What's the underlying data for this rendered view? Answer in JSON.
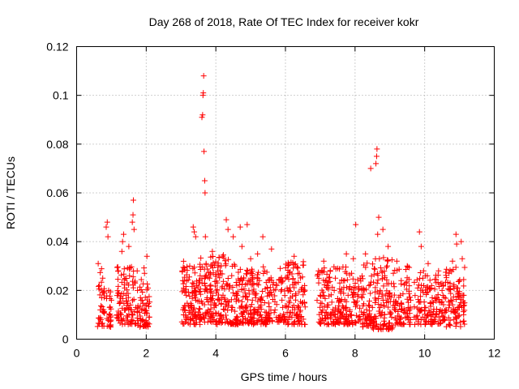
{
  "chart_data": {
    "type": "scatter",
    "title": "Day 268 of 2018, Rate Of TEC Index for receiver kokr",
    "xlabel": "GPS time / hours",
    "ylabel": "ROTI / TECUs",
    "xlim": [
      0,
      12
    ],
    "ylim": [
      0,
      0.12
    ],
    "x_ticks": [
      0,
      2,
      4,
      6,
      8,
      10,
      12
    ],
    "y_ticks": [
      0,
      0.02,
      0.04,
      0.06,
      0.08,
      0.1,
      0.12
    ],
    "x_tick_labels": [
      "0",
      "2",
      "4",
      "6",
      "8",
      "10",
      "12"
    ],
    "y_tick_labels": [
      "0",
      "0.02",
      "0.04",
      "0.06",
      "0.08",
      "0.1",
      "0.12"
    ],
    "grid": true,
    "marker": "+",
    "color": "#ff0000",
    "series": [
      {
        "name": "ROTI",
        "points": [
          [
            0.62,
            0.031
          ],
          [
            0.65,
            0.022
          ],
          [
            0.68,
            0.012
          ],
          [
            0.7,
            0.008
          ],
          [
            0.72,
            0.017
          ],
          [
            0.75,
            0.025
          ],
          [
            0.78,
            0.011
          ],
          [
            0.8,
            0.019
          ],
          [
            0.85,
            0.046
          ],
          [
            0.88,
            0.048
          ],
          [
            0.9,
            0.042
          ],
          [
            0.92,
            0.02
          ],
          [
            0.95,
            0.013
          ],
          [
            0.97,
            0.009
          ],
          [
            1.0,
            0.016
          ],
          [
            1.2,
            0.028
          ],
          [
            1.25,
            0.015
          ],
          [
            1.28,
            0.01
          ],
          [
            1.3,
            0.036
          ],
          [
            1.32,
            0.04
          ],
          [
            1.35,
            0.043
          ],
          [
            1.38,
            0.021
          ],
          [
            1.4,
            0.012
          ],
          [
            1.42,
            0.018
          ],
          [
            1.5,
            0.038
          ],
          [
            1.52,
            0.026
          ],
          [
            1.55,
            0.014
          ],
          [
            1.58,
            0.01
          ],
          [
            1.6,
            0.048
          ],
          [
            1.62,
            0.051
          ],
          [
            1.63,
            0.057
          ],
          [
            1.65,
            0.045
          ],
          [
            1.68,
            0.023
          ],
          [
            1.7,
            0.013
          ],
          [
            1.75,
            0.02
          ],
          [
            1.8,
            0.011
          ],
          [
            1.85,
            0.016
          ],
          [
            1.9,
            0.008
          ],
          [
            1.95,
            0.027
          ],
          [
            2.0,
            0.014
          ],
          [
            2.02,
            0.034
          ],
          [
            2.05,
            0.021
          ],
          [
            2.08,
            0.009
          ],
          [
            3.05,
            0.024
          ],
          [
            3.1,
            0.012
          ],
          [
            3.15,
            0.018
          ],
          [
            3.2,
            0.009
          ],
          [
            3.25,
            0.03
          ],
          [
            3.3,
            0.014
          ],
          [
            3.35,
            0.046
          ],
          [
            3.38,
            0.044
          ],
          [
            3.42,
            0.042
          ],
          [
            3.45,
            0.022
          ],
          [
            3.5,
            0.011
          ],
          [
            3.55,
            0.026
          ],
          [
            3.6,
            0.091
          ],
          [
            3.62,
            0.092
          ],
          [
            3.63,
            0.1
          ],
          [
            3.64,
            0.101
          ],
          [
            3.65,
            0.108
          ],
          [
            3.66,
            0.077
          ],
          [
            3.68,
            0.065
          ],
          [
            3.69,
            0.06
          ],
          [
            3.7,
            0.042
          ],
          [
            3.72,
            0.031
          ],
          [
            3.75,
            0.017
          ],
          [
            3.78,
            0.012
          ],
          [
            3.82,
            0.025
          ],
          [
            3.85,
            0.019
          ],
          [
            3.9,
            0.036
          ],
          [
            3.95,
            0.014
          ],
          [
            4.05,
            0.028
          ],
          [
            4.1,
            0.016
          ],
          [
            4.15,
            0.01
          ],
          [
            4.2,
            0.034
          ],
          [
            4.3,
            0.049
          ],
          [
            4.35,
            0.045
          ],
          [
            4.4,
            0.022
          ],
          [
            4.45,
            0.012
          ],
          [
            4.5,
            0.042
          ],
          [
            4.55,
            0.03
          ],
          [
            4.6,
            0.018
          ],
          [
            4.7,
            0.046
          ],
          [
            4.75,
            0.038
          ],
          [
            4.8,
            0.025
          ],
          [
            4.85,
            0.013
          ],
          [
            4.9,
            0.047
          ],
          [
            4.95,
            0.02
          ],
          [
            5.0,
            0.033
          ],
          [
            5.05,
            0.016
          ],
          [
            5.1,
            0.01
          ],
          [
            5.2,
            0.035
          ],
          [
            5.25,
            0.024
          ],
          [
            5.3,
            0.014
          ],
          [
            5.35,
            0.042
          ],
          [
            5.4,
            0.028
          ],
          [
            5.45,
            0.011
          ],
          [
            5.5,
            0.019
          ],
          [
            5.6,
            0.037
          ],
          [
            5.7,
            0.012
          ],
          [
            5.75,
            0.022
          ],
          [
            5.8,
            0.009
          ],
          [
            5.85,
            0.029
          ],
          [
            5.9,
            0.016
          ],
          [
            6.0,
            0.025
          ],
          [
            6.05,
            0.011
          ],
          [
            6.1,
            0.02
          ],
          [
            6.2,
            0.013
          ],
          [
            6.25,
            0.034
          ],
          [
            6.3,
            0.018
          ],
          [
            6.35,
            0.009
          ],
          [
            6.4,
            0.027
          ],
          [
            6.5,
            0.015
          ],
          [
            6.55,
            0.022
          ],
          [
            6.95,
            0.028
          ],
          [
            7.0,
            0.018
          ],
          [
            7.05,
            0.011
          ],
          [
            7.1,
            0.032
          ],
          [
            7.15,
            0.024
          ],
          [
            7.2,
            0.014
          ],
          [
            7.3,
            0.009
          ],
          [
            7.4,
            0.02
          ],
          [
            7.5,
            0.029
          ],
          [
            7.55,
            0.016
          ],
          [
            7.6,
            0.011
          ],
          [
            7.7,
            0.024
          ],
          [
            7.75,
            0.035
          ],
          [
            7.8,
            0.018
          ],
          [
            7.85,
            0.012
          ],
          [
            7.9,
            0.027
          ],
          [
            7.95,
            0.033
          ],
          [
            8.0,
            0.021
          ],
          [
            8.02,
            0.047
          ],
          [
            8.05,
            0.014
          ],
          [
            8.1,
            0.009
          ],
          [
            8.15,
            0.025
          ],
          [
            8.2,
            0.017
          ],
          [
            8.3,
            0.035
          ],
          [
            8.4,
            0.022
          ],
          [
            8.45,
            0.07
          ],
          [
            8.5,
            0.013
          ],
          [
            8.55,
            0.029
          ],
          [
            8.6,
            0.072
          ],
          [
            8.62,
            0.075
          ],
          [
            8.63,
            0.078
          ],
          [
            8.65,
            0.043
          ],
          [
            8.68,
            0.05
          ],
          [
            8.7,
            0.033
          ],
          [
            8.72,
            0.02
          ],
          [
            8.75,
            0.004
          ],
          [
            8.78,
            0.011
          ],
          [
            8.8,
            0.045
          ],
          [
            8.85,
            0.026
          ],
          [
            8.9,
            0.015
          ],
          [
            8.95,
            0.038
          ],
          [
            9.0,
            0.019
          ],
          [
            9.05,
            0.009
          ],
          [
            9.1,
            0.027
          ],
          [
            9.15,
            0.014
          ],
          [
            9.2,
            0.032
          ],
          [
            9.3,
            0.018
          ],
          [
            9.4,
            0.011
          ],
          [
            9.45,
            0.023
          ],
          [
            9.5,
            0.03
          ],
          [
            9.6,
            0.016
          ],
          [
            9.7,
            0.009
          ],
          [
            9.8,
            0.021
          ],
          [
            9.85,
            0.044
          ],
          [
            9.9,
            0.038
          ],
          [
            9.95,
            0.025
          ],
          [
            10.0,
            0.013
          ],
          [
            10.05,
            0.019
          ],
          [
            10.1,
            0.031
          ],
          [
            10.15,
            0.011
          ],
          [
            10.2,
            0.022
          ],
          [
            10.25,
            0.015
          ],
          [
            10.3,
            0.009
          ],
          [
            10.35,
            0.017
          ],
          [
            10.4,
            0.028
          ],
          [
            10.45,
            0.012
          ],
          [
            10.5,
            0.02
          ],
          [
            10.55,
            0.008
          ],
          [
            10.7,
            0.027
          ],
          [
            10.75,
            0.016
          ],
          [
            10.8,
            0.032
          ],
          [
            10.85,
            0.011
          ],
          [
            10.9,
            0.043
          ],
          [
            10.92,
            0.039
          ],
          [
            10.95,
            0.021
          ],
          [
            11.0,
            0.013
          ],
          [
            11.05,
            0.04
          ],
          [
            11.08,
            0.033
          ],
          [
            11.1,
            0.018
          ],
          [
            11.12,
            0.01
          ]
        ]
      }
    ],
    "clusters": [
      {
        "x0": 0.6,
        "x1": 0.8,
        "ymin": 0.005,
        "ymax": 0.03,
        "count": 30
      },
      {
        "x0": 0.85,
        "x1": 1.0,
        "ymin": 0.005,
        "ymax": 0.02,
        "count": 22
      },
      {
        "x0": 1.15,
        "x1": 1.72,
        "ymin": 0.006,
        "ymax": 0.03,
        "count": 90
      },
      {
        "x0": 1.72,
        "x1": 2.1,
        "ymin": 0.005,
        "ymax": 0.03,
        "count": 60
      },
      {
        "x0": 3.02,
        "x1": 3.55,
        "ymin": 0.006,
        "ymax": 0.032,
        "count": 110
      },
      {
        "x0": 3.55,
        "x1": 4.0,
        "ymin": 0.007,
        "ymax": 0.034,
        "count": 90
      },
      {
        "x0": 4.0,
        "x1": 4.6,
        "ymin": 0.006,
        "ymax": 0.035,
        "count": 110
      },
      {
        "x0": 4.6,
        "x1": 5.5,
        "ymin": 0.006,
        "ymax": 0.03,
        "count": 170
      },
      {
        "x0": 5.5,
        "x1": 6.0,
        "ymin": 0.007,
        "ymax": 0.026,
        "count": 70
      },
      {
        "x0": 6.0,
        "x1": 6.6,
        "ymin": 0.006,
        "ymax": 0.032,
        "count": 100
      },
      {
        "x0": 6.9,
        "x1": 7.5,
        "ymin": 0.006,
        "ymax": 0.03,
        "count": 90
      },
      {
        "x0": 7.5,
        "x1": 8.2,
        "ymin": 0.006,
        "ymax": 0.03,
        "count": 110
      },
      {
        "x0": 8.2,
        "x1": 9.1,
        "ymin": 0.004,
        "ymax": 0.034,
        "count": 160
      },
      {
        "x0": 9.1,
        "x1": 9.6,
        "ymin": 0.006,
        "ymax": 0.03,
        "count": 80
      },
      {
        "x0": 9.7,
        "x1": 10.6,
        "ymin": 0.006,
        "ymax": 0.028,
        "count": 130
      },
      {
        "x0": 10.6,
        "x1": 11.15,
        "ymin": 0.005,
        "ymax": 0.03,
        "count": 90
      }
    ]
  }
}
